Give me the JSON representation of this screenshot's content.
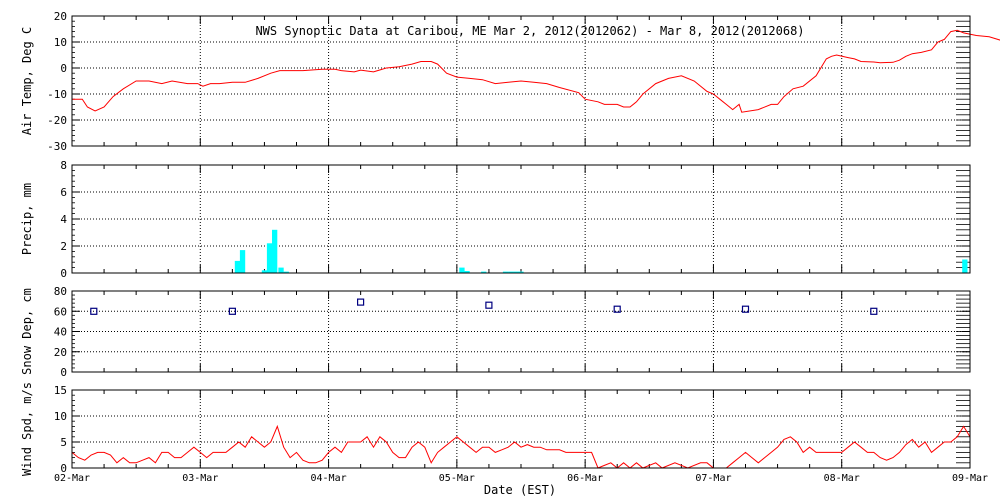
{
  "chart_data": {
    "type": "line",
    "title": "NWS Synoptic Data at Caribou, ME   Mar  2, 2012(2012062) - Mar  8, 2012(2012068)",
    "xlabel": "Date (EST)",
    "x_range_days": [
      0,
      7
    ],
    "x_tick_labels": [
      "02-Mar",
      "03-Mar",
      "04-Mar",
      "05-Mar",
      "06-Mar",
      "07-Mar",
      "08-Mar",
      "09-Mar"
    ],
    "grid": true,
    "colors": {
      "air_temp": "#ff0000",
      "precip": "#00ffff",
      "snow": "#000080",
      "wind": "#ff0000"
    },
    "panels": [
      {
        "id": "air_temp",
        "type": "line",
        "ylabel": "Air Temp, Deg C",
        "ylim": [
          -30,
          20
        ],
        "yticks": [
          -30,
          -20,
          -10,
          0,
          10,
          20
        ],
        "series": [
          {
            "points": [
              [
                0.0,
                -12
              ],
              [
                0.08,
                -12
              ],
              [
                0.12,
                -15
              ],
              [
                0.18,
                -16.5
              ],
              [
                0.25,
                -15
              ],
              [
                0.32,
                -11
              ],
              [
                0.4,
                -8
              ],
              [
                0.5,
                -5
              ],
              [
                0.6,
                -5
              ],
              [
                0.7,
                -6
              ],
              [
                0.78,
                -5
              ],
              [
                0.9,
                -6
              ],
              [
                0.98,
                -6
              ],
              [
                1.02,
                -7
              ],
              [
                1.08,
                -6
              ],
              [
                1.15,
                -6
              ],
              [
                1.25,
                -5.5
              ],
              [
                1.35,
                -5.5
              ],
              [
                1.45,
                -4
              ],
              [
                1.55,
                -2
              ],
              [
                1.62,
                -1
              ],
              [
                1.8,
                -1
              ],
              [
                1.95,
                -0.5
              ],
              [
                2.05,
                -0.5
              ],
              [
                2.1,
                -1
              ],
              [
                2.2,
                -1.5
              ],
              [
                2.25,
                -0.8
              ],
              [
                2.35,
                -1.5
              ],
              [
                2.45,
                0
              ],
              [
                2.55,
                0.5
              ],
              [
                2.65,
                1.5
              ],
              [
                2.72,
                2.5
              ],
              [
                2.8,
                2.5
              ],
              [
                2.85,
                1.5
              ],
              [
                2.92,
                -2
              ],
              [
                3.0,
                -3.5
              ],
              [
                3.1,
                -4
              ],
              [
                3.2,
                -4.5
              ],
              [
                3.3,
                -6
              ],
              [
                3.4,
                -5.5
              ],
              [
                3.5,
                -5
              ],
              [
                3.6,
                -5.5
              ],
              [
                3.7,
                -6
              ],
              [
                3.8,
                -7.5
              ],
              [
                3.95,
                -9.5
              ],
              [
                4.0,
                -12
              ],
              [
                4.1,
                -13
              ],
              [
                4.15,
                -14
              ],
              [
                4.25,
                -14
              ],
              [
                4.3,
                -15
              ],
              [
                4.35,
                -15
              ],
              [
                4.4,
                -13
              ],
              [
                4.45,
                -10
              ],
              [
                4.55,
                -6
              ],
              [
                4.65,
                -4
              ],
              [
                4.75,
                -3
              ],
              [
                4.85,
                -5
              ],
              [
                4.95,
                -9
              ],
              [
                5.0,
                -10
              ],
              [
                5.05,
                -12
              ],
              [
                5.1,
                -14
              ],
              [
                5.15,
                -16
              ],
              [
                5.2,
                -14
              ],
              [
                5.22,
                -17
              ],
              [
                5.35,
                -16
              ],
              [
                5.45,
                -14
              ],
              [
                5.5,
                -14
              ],
              [
                5.55,
                -11
              ],
              [
                5.62,
                -8
              ],
              [
                5.7,
                -7
              ],
              [
                5.8,
                -3
              ],
              [
                5.88,
                3.5
              ],
              [
                5.92,
                4.5
              ],
              [
                5.96,
                5
              ],
              [
                6.05,
                4
              ],
              [
                6.1,
                3.5
              ],
              [
                6.15,
                2.5
              ],
              [
                6.25,
                2.3
              ],
              [
                6.3,
                2
              ],
              [
                6.4,
                2.2
              ],
              [
                6.45,
                3
              ],
              [
                6.5,
                4.5
              ],
              [
                6.55,
                5.5
              ],
              [
                6.62,
                6
              ],
              [
                6.7,
                7
              ],
              [
                6.75,
                10
              ],
              [
                6.8,
                11
              ],
              [
                6.85,
                14
              ],
              [
                6.9,
                14.5
              ],
              [
                6.95,
                13.5
              ],
              [
                7.05,
                12.5
              ],
              [
                7.15,
                12
              ],
              [
                7.25,
                10.5
              ],
              [
                7.3,
                9
              ]
            ]
          }
        ]
      },
      {
        "id": "precip",
        "type": "bar",
        "ylabel": "Precip, mm",
        "ylim": [
          0,
          8
        ],
        "yticks": [
          0,
          2,
          4,
          6,
          8
        ],
        "bar_width_days": 0.0417,
        "bars": [
          [
            1.29,
            0.9
          ],
          [
            1.33,
            1.7
          ],
          [
            1.5,
            0.2
          ],
          [
            1.54,
            2.2
          ],
          [
            1.58,
            3.2
          ],
          [
            1.63,
            0.4
          ],
          [
            1.67,
            0.1
          ],
          [
            3.04,
            0.4
          ],
          [
            3.08,
            0.15
          ],
          [
            3.21,
            0.1
          ],
          [
            3.38,
            0.1
          ],
          [
            3.42,
            0.1
          ],
          [
            3.46,
            0.1
          ],
          [
            3.5,
            0.1
          ],
          [
            6.96,
            1.0
          ]
        ]
      },
      {
        "id": "snow_depth",
        "type": "scatter",
        "ylabel": "Snow Dep, cm",
        "ylim": [
          0,
          80
        ],
        "yticks": [
          0,
          20,
          40,
          60,
          80
        ],
        "points": [
          [
            0.17,
            60
          ],
          [
            1.25,
            60
          ],
          [
            2.25,
            69
          ],
          [
            3.25,
            66
          ],
          [
            4.25,
            62
          ],
          [
            5.25,
            62
          ],
          [
            6.25,
            60
          ]
        ]
      },
      {
        "id": "wind_speed",
        "type": "line",
        "ylabel": "Wind Spd, m/s",
        "ylim": [
          0,
          15
        ],
        "yticks": [
          0,
          5,
          10,
          15
        ],
        "series": [
          {
            "points": [
              [
                0.0,
                3
              ],
              [
                0.05,
                2
              ],
              [
                0.1,
                1.5
              ],
              [
                0.15,
                2.5
              ],
              [
                0.2,
                3
              ],
              [
                0.25,
                3
              ],
              [
                0.3,
                2.5
              ],
              [
                0.35,
                1
              ],
              [
                0.4,
                2
              ],
              [
                0.45,
                1
              ],
              [
                0.5,
                1
              ],
              [
                0.55,
                1.5
              ],
              [
                0.6,
                2
              ],
              [
                0.65,
                1
              ],
              [
                0.7,
                3
              ],
              [
                0.75,
                3
              ],
              [
                0.8,
                2
              ],
              [
                0.85,
                2
              ],
              [
                0.9,
                3
              ],
              [
                0.95,
                4
              ],
              [
                1.0,
                3
              ],
              [
                1.05,
                2
              ],
              [
                1.1,
                3
              ],
              [
                1.2,
                3
              ],
              [
                1.25,
                4
              ],
              [
                1.3,
                5
              ],
              [
                1.35,
                4
              ],
              [
                1.4,
                6
              ],
              [
                1.45,
                5
              ],
              [
                1.5,
                4
              ],
              [
                1.55,
                5
              ],
              [
                1.6,
                8
              ],
              [
                1.65,
                4
              ],
              [
                1.7,
                2
              ],
              [
                1.75,
                3
              ],
              [
                1.8,
                1.5
              ],
              [
                1.85,
                1
              ],
              [
                1.9,
                1
              ],
              [
                1.95,
                1.5
              ],
              [
                2.0,
                3
              ],
              [
                2.05,
                4
              ],
              [
                2.1,
                3
              ],
              [
                2.15,
                5
              ],
              [
                2.2,
                5
              ],
              [
                2.25,
                5
              ],
              [
                2.3,
                6
              ],
              [
                2.35,
                4
              ],
              [
                2.4,
                6
              ],
              [
                2.45,
                5
              ],
              [
                2.5,
                3
              ],
              [
                2.55,
                2
              ],
              [
                2.6,
                2
              ],
              [
                2.65,
                4
              ],
              [
                2.7,
                5
              ],
              [
                2.75,
                4
              ],
              [
                2.8,
                1
              ],
              [
                2.85,
                3
              ],
              [
                2.9,
                4
              ],
              [
                2.95,
                5
              ],
              [
                3.0,
                6
              ],
              [
                3.05,
                5
              ],
              [
                3.1,
                4
              ],
              [
                3.15,
                3
              ],
              [
                3.2,
                4
              ],
              [
                3.25,
                4
              ],
              [
                3.3,
                3
              ],
              [
                3.35,
                3.5
              ],
              [
                3.4,
                4
              ],
              [
                3.45,
                5
              ],
              [
                3.5,
                4
              ],
              [
                3.55,
                4.5
              ],
              [
                3.6,
                4
              ],
              [
                3.65,
                4
              ],
              [
                3.7,
                3.5
              ],
              [
                3.75,
                3.5
              ],
              [
                3.8,
                3.5
              ],
              [
                3.85,
                3
              ],
              [
                3.9,
                3
              ],
              [
                4.0,
                3
              ],
              [
                4.05,
                3
              ],
              [
                4.1,
                0
              ],
              [
                4.15,
                0.5
              ],
              [
                4.2,
                1
              ],
              [
                4.25,
                0
              ],
              [
                4.3,
                1
              ],
              [
                4.35,
                0
              ],
              [
                4.4,
                1
              ],
              [
                4.45,
                0
              ],
              [
                4.5,
                0.5
              ],
              [
                4.55,
                1
              ],
              [
                4.6,
                0
              ],
              [
                4.7,
                1
              ],
              [
                4.8,
                0
              ],
              [
                4.9,
                1
              ],
              [
                4.95,
                1
              ],
              [
                5.0,
                0
              ],
              [
                5.1,
                0
              ],
              [
                5.15,
                1
              ],
              [
                5.2,
                2
              ],
              [
                5.25,
                3
              ],
              [
                5.3,
                2
              ],
              [
                5.35,
                1
              ],
              [
                5.4,
                2
              ],
              [
                5.45,
                3
              ],
              [
                5.5,
                4
              ],
              [
                5.55,
                5.5
              ],
              [
                5.6,
                6
              ],
              [
                5.65,
                5
              ],
              [
                5.7,
                3
              ],
              [
                5.75,
                4
              ],
              [
                5.8,
                3
              ],
              [
                5.85,
                3
              ],
              [
                5.9,
                3
              ],
              [
                5.95,
                3
              ],
              [
                6.0,
                3
              ],
              [
                6.05,
                4
              ],
              [
                6.1,
                5
              ],
              [
                6.15,
                4
              ],
              [
                6.2,
                3
              ],
              [
                6.25,
                3
              ],
              [
                6.3,
                2
              ],
              [
                6.35,
                1.5
              ],
              [
                6.4,
                2
              ],
              [
                6.45,
                3
              ],
              [
                6.5,
                4.5
              ],
              [
                6.55,
                5.5
              ],
              [
                6.6,
                4
              ],
              [
                6.65,
                5
              ],
              [
                6.7,
                3
              ],
              [
                6.75,
                4
              ],
              [
                6.8,
                5
              ],
              [
                6.85,
                5
              ],
              [
                6.9,
                6
              ],
              [
                6.95,
                8
              ],
              [
                7.0,
                6
              ]
            ]
          }
        ]
      }
    ]
  }
}
